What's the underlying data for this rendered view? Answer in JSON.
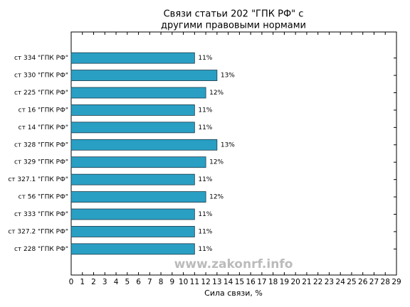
{
  "chart_data": {
    "type": "barh",
    "title": [
      "Связи статьи 202 \"ГПК РФ\" с",
      "другими правовыми нормами"
    ],
    "xlabel": "Сила связи, %",
    "annotation": "www.zakonrf.info",
    "categories": [
      "ст 334 \"ГПК РФ\"",
      "ст 330 \"ГПК РФ\"",
      "ст 225 \"ГПК РФ\"",
      "ст 16 \"ГПК РФ\"",
      "ст 14 \"ГПК РФ\"",
      "ст 328 \"ГПК РФ\"",
      "ст 329 \"ГПК РФ\"",
      "ст 327.1 \"ГПК РФ\"",
      "ст 56 \"ГПК РФ\"",
      "ст 333 \"ГПК РФ\"",
      "ст 327.2 \"ГПК РФ\"",
      "ст 228 \"ГПК РФ\""
    ],
    "values": [
      11,
      13,
      12,
      11,
      11,
      13,
      12,
      11,
      12,
      11,
      11,
      11
    ],
    "value_labels": [
      "11%",
      "13%",
      "12%",
      "11%",
      "11%",
      "13%",
      "12%",
      "11%",
      "12%",
      "11%",
      "11%",
      "11%"
    ],
    "color": "#2a9fc4",
    "xlim": [
      0,
      29
    ],
    "xticks": [
      0,
      1,
      2,
      3,
      4,
      5,
      6,
      7,
      8,
      9,
      10,
      11,
      12,
      13,
      14,
      15,
      16,
      17,
      18,
      19,
      20,
      21,
      22,
      23,
      24,
      25,
      26,
      27,
      28,
      29
    ]
  }
}
